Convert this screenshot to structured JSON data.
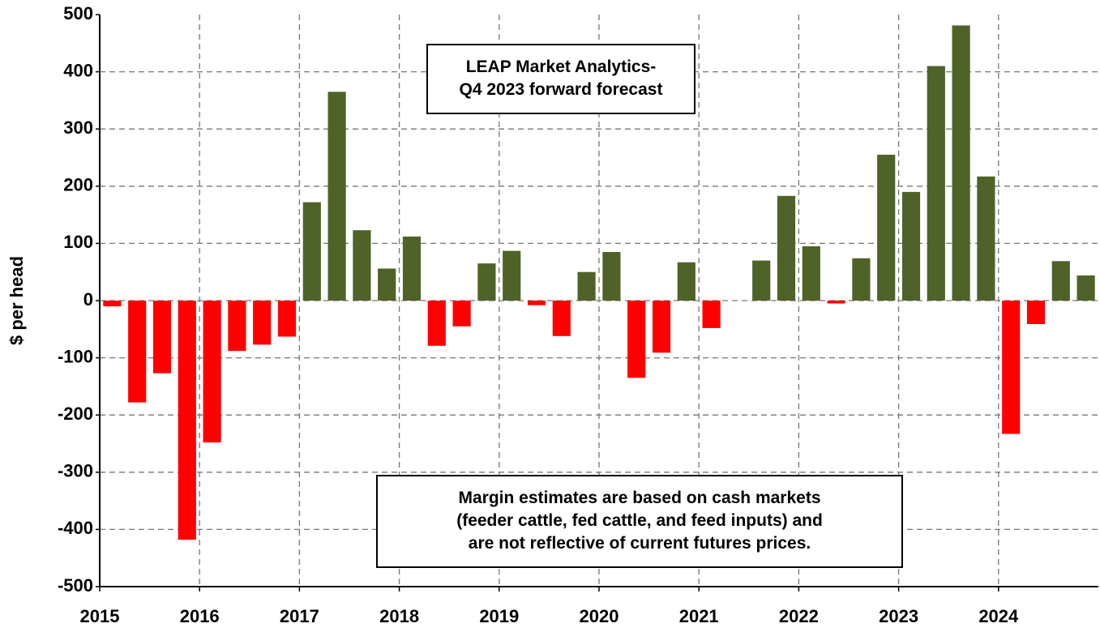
{
  "chart_data": {
    "type": "bar",
    "y_label": "$ per head",
    "categories": [
      null,
      null,
      null,
      null,
      null,
      null,
      null,
      null,
      null,
      null,
      null,
      null,
      null,
      null,
      null,
      null,
      null,
      null,
      null,
      null,
      null,
      null,
      null,
      null,
      null,
      null,
      null,
      null,
      null,
      null,
      null,
      null,
      null,
      null,
      null,
      null,
      null,
      null,
      null,
      null
    ],
    "values": [
      -10,
      -178,
      -127,
      -418,
      -248,
      -88,
      -77,
      -63,
      172,
      365,
      123,
      56,
      112,
      -79,
      -45,
      65,
      87,
      -8,
      -62,
      50,
      85,
      -135,
      -91,
      67,
      -48,
      0,
      70,
      183,
      95,
      -5,
      74,
      255,
      190,
      410,
      481,
      217,
      -233,
      -41,
      69,
      44
    ],
    "colors": {
      "positive": "#4f6228",
      "negative": "#ff0000"
    },
    "xlim": [
      2015,
      2025
    ],
    "xticks": [
      2015,
      2016,
      2017,
      2018,
      2019,
      2020,
      2021,
      2022,
      2023,
      2024
    ],
    "ylim": [
      -500,
      500
    ],
    "yticks": [
      -500,
      -400,
      -300,
      -200,
      -100,
      0,
      100,
      200,
      300,
      400,
      500
    ],
    "grid": true,
    "annotations": [
      {
        "lines": [
          "LEAP Market Analytics-",
          "Q4 2023 forward forecast"
        ]
      },
      {
        "lines": [
          "Margin estimates are based on cash markets",
          "(feeder cattle, fed cattle, and feed inputs) and",
          "are not reflective of current futures prices."
        ]
      }
    ]
  }
}
